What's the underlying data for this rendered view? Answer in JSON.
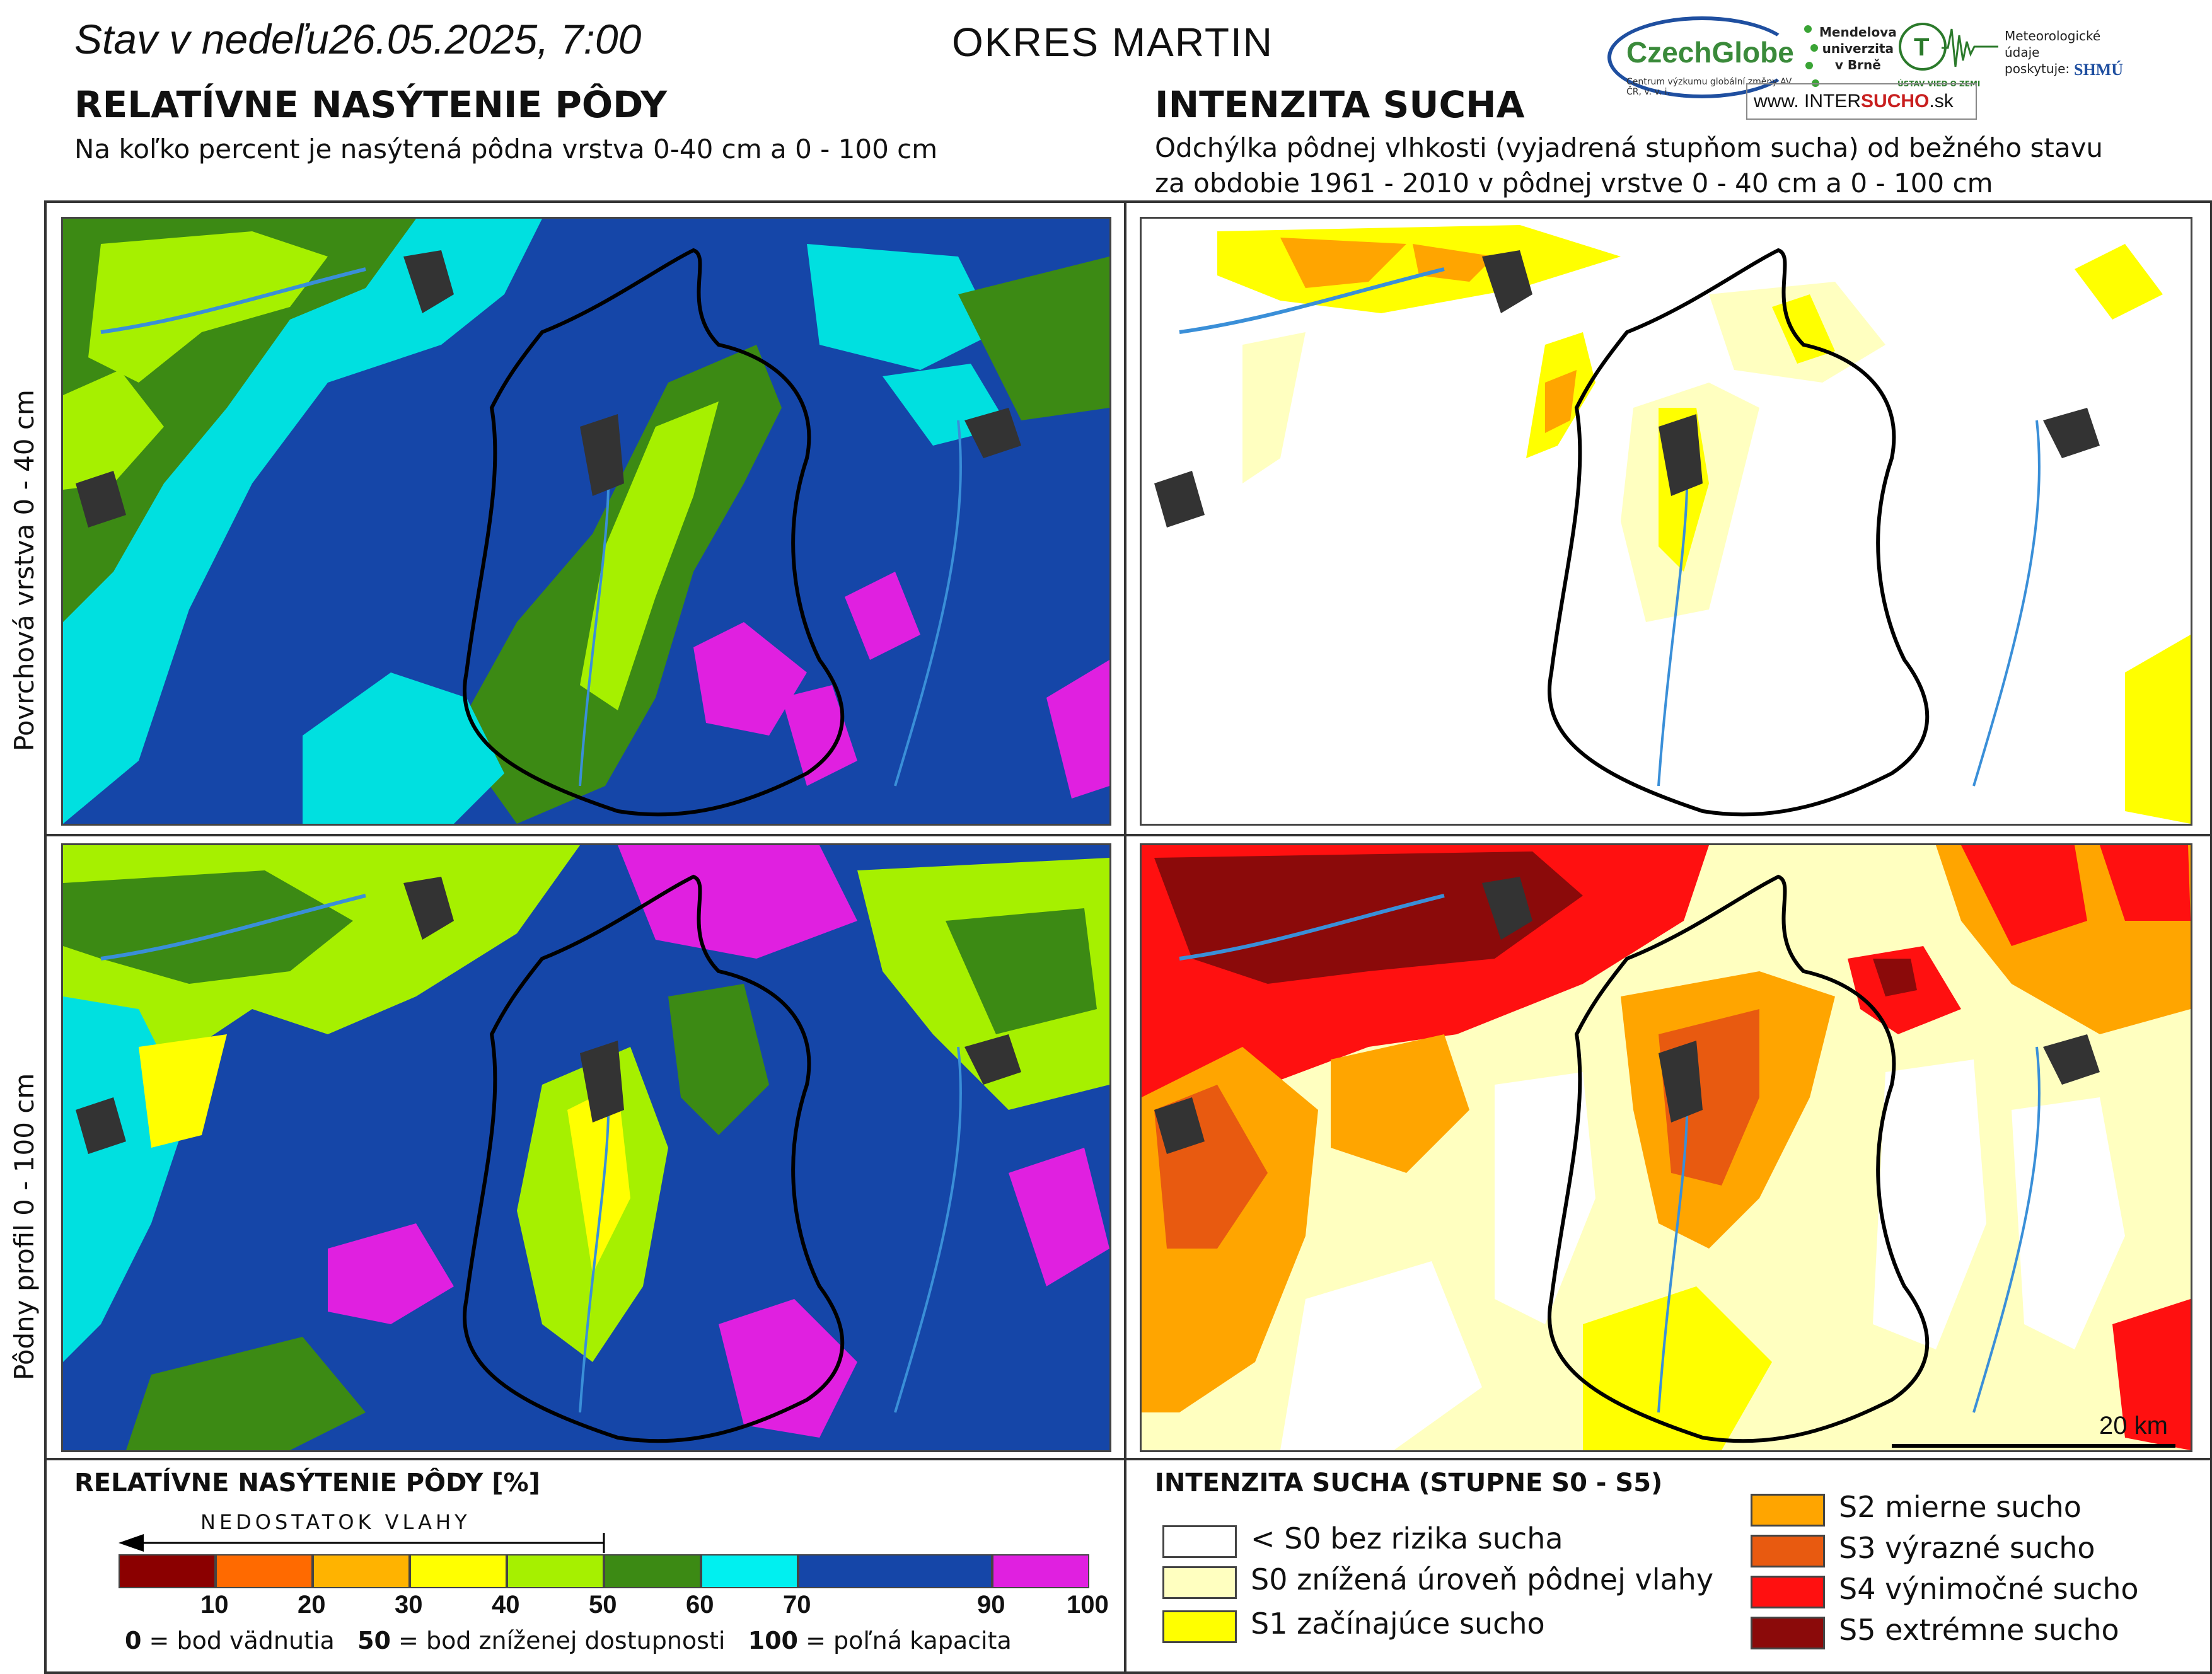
{
  "header": {
    "date": "Stav v nedeľu26.05.2025, 7:00",
    "district": "OKRES MARTIN"
  },
  "left_panel": {
    "title": "RELATÍVNE NASÝTENIE PÔDY",
    "subtitle": "Na koľko percent je nasýtená pôdna vrstva 0-40 cm a 0 - 100 cm"
  },
  "right_panel": {
    "title": "INTENZITA SUCHA",
    "subtitle_line1": "Odchýlka pôdnej vlhkosti (vyjadrená stupňom sucha) od bežného stavu",
    "subtitle_line2": "za obdobie 1961 - 2010 v pôdnej vrstve 0 - 40 cm a 0 - 100 cm"
  },
  "row_labels": {
    "top": "Povrchová vrstva 0 - 40 cm",
    "bottom": "Pôdny profil 0 - 100 cm"
  },
  "logos": {
    "czechglobe": "CzechGlobe",
    "czechglobe_tag": "Centrum výzkumu globální změny AV ČR, v. v. i.",
    "mendel_line1": "Mendelova",
    "mendel_line2": "univerzita",
    "mendel_line3": "v Brně",
    "uvz": "ÚSTAV VIED O ZEMI",
    "meteo_line1": "Meteorologické",
    "meteo_line2": "údaje",
    "meteo_line3": "poskytuje:",
    "shmu": "SHMÚ",
    "intersucho_prefix": "www.",
    "intersucho_mid1": "INTER",
    "intersucho_mid2": "SUCHO",
    "intersucho_suffix": ".sk"
  },
  "saturation_legend": {
    "title": "RELATÍVNE NASÝTENIE PÔDY [%]",
    "arrow_label": "NEDOSTATOK VLAHY",
    "classes": [
      {
        "from": 0,
        "to": 10,
        "color": "#8b0000"
      },
      {
        "from": 10,
        "to": 20,
        "color": "#ff6a00"
      },
      {
        "from": 20,
        "to": 30,
        "color": "#ffb300"
      },
      {
        "from": 30,
        "to": 40,
        "color": "#ffff00"
      },
      {
        "from": 40,
        "to": 50,
        "color": "#a6f000"
      },
      {
        "from": 50,
        "to": 60,
        "color": "#3c8a14"
      },
      {
        "from": 60,
        "to": 70,
        "color": "#00f0f0"
      },
      {
        "from": 70,
        "to": 90,
        "color": "#1546a8"
      },
      {
        "from": 90,
        "to": 100,
        "color": "#e020e0"
      }
    ],
    "ticks": [
      "10",
      "20",
      "30",
      "40",
      "50",
      "60",
      "70",
      "90",
      "100"
    ],
    "note_0_value": "0",
    "note_0_text": " = bod vädnutia",
    "note_50_value": "50",
    "note_50_text": " = bod zníženej dostupnosti",
    "note_100_value": "100",
    "note_100_text": " = poľná kapacita"
  },
  "drought_legend": {
    "title": "INTENZITA SUCHA (STUPNE S0 - S5)",
    "items": [
      {
        "label": "< S0 bez rizika sucha",
        "color": "#ffffff"
      },
      {
        "label": "S0 znížená úroveň pôdnej vlahy",
        "color": "#ffffc0"
      },
      {
        "label": "S1 začínajúce sucho",
        "color": "#ffff00"
      },
      {
        "label": "S2 mierne sucho",
        "color": "#ffa500"
      },
      {
        "label": "S3 výrazné sucho",
        "color": "#e85a10"
      },
      {
        "label": "S4 výnimočné sucho",
        "color": "#ff1010"
      },
      {
        "label": "S5 extrémne sucho",
        "color": "#8b0a0a"
      }
    ]
  },
  "scale_bar": "20 km"
}
